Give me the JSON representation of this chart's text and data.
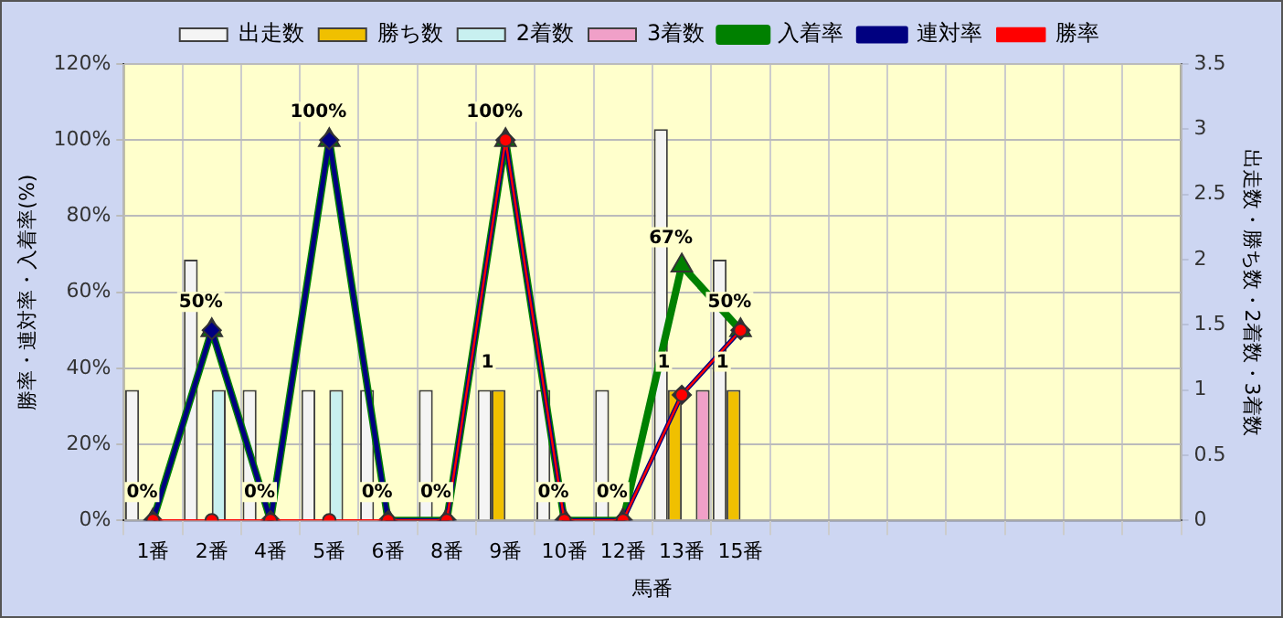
{
  "chart_data": {
    "type": "bar",
    "xlabel": "馬番",
    "ylabel": "勝率・連対率・入着率(%)",
    "y2label": "出走数・勝ち数・2着数・3着数",
    "categories": [
      "1番",
      "2番",
      "4番",
      "5番",
      "6番",
      "8番",
      "9番",
      "10番",
      "12番",
      "13番",
      "15番",
      null,
      null,
      null,
      null,
      null,
      null,
      null
    ],
    "series": [
      {
        "name": "出走数",
        "axis": "y2",
        "color": "#f4f4f4",
        "values": [
          1,
          2,
          1,
          1,
          1,
          1,
          1,
          1,
          1,
          3,
          2,
          null,
          null,
          null,
          null,
          null,
          null,
          null
        ]
      },
      {
        "name": "勝ち数",
        "axis": "y2",
        "color": "#f0c000",
        "values": [
          null,
          null,
          null,
          null,
          null,
          null,
          1,
          null,
          null,
          1,
          1,
          null,
          null,
          null,
          null,
          null,
          null,
          null
        ],
        "value_labels": [
          null,
          null,
          null,
          null,
          null,
          null,
          "1",
          null,
          null,
          "1",
          "1",
          null,
          null,
          null,
          null,
          null,
          null,
          null
        ]
      },
      {
        "name": "2着数",
        "axis": "y2",
        "color": "#c8f0f0",
        "values": [
          null,
          1,
          null,
          1,
          null,
          null,
          null,
          null,
          null,
          null,
          null,
          null,
          null,
          null,
          null,
          null,
          null,
          null
        ]
      },
      {
        "name": "3着数",
        "axis": "y2",
        "color": "#f0a0c8",
        "values": [
          null,
          null,
          null,
          null,
          null,
          null,
          null,
          null,
          null,
          1,
          null,
          null,
          null,
          null,
          null,
          null,
          null,
          null
        ]
      },
      {
        "name": "入着率",
        "type": "line",
        "marker": "triangle",
        "color": "#008000",
        "values": [
          0,
          50,
          0,
          100,
          0,
          0,
          100,
          0,
          0,
          67,
          50,
          null,
          null,
          null,
          null,
          null,
          null,
          null
        ],
        "value_labels": [
          "0%",
          "50%",
          "0%",
          "100%",
          "0%",
          "0%",
          "100%",
          "0%",
          "0%",
          "67%",
          "50%",
          null,
          null,
          null,
          null,
          null,
          null,
          null
        ]
      },
      {
        "name": "連対率",
        "type": "line",
        "marker": "diamond",
        "color": "#000080",
        "values": [
          0,
          50,
          0,
          100,
          0,
          0,
          100,
          0,
          0,
          33,
          50,
          null,
          null,
          null,
          null,
          null,
          null,
          null
        ]
      },
      {
        "name": "勝率",
        "type": "line",
        "marker": "circle",
        "color": "#ff0000",
        "values": [
          0,
          0,
          0,
          0,
          0,
          0,
          100,
          0,
          0,
          33,
          50,
          null,
          null,
          null,
          null,
          null,
          null,
          null
        ]
      }
    ],
    "ylim": [
      0,
      120
    ],
    "yticks": [
      {
        "value": 0,
        "label": "0%"
      },
      {
        "value": 20,
        "label": "20%"
      },
      {
        "value": 40,
        "label": "40%"
      },
      {
        "value": 60,
        "label": "60%"
      },
      {
        "value": 80,
        "label": "80%"
      },
      {
        "value": 100,
        "label": "100%"
      },
      {
        "value": 120,
        "label": "120%"
      }
    ],
    "y2lim": [
      0,
      3.5
    ],
    "y2ticks": [
      0,
      0.5,
      1,
      1.5,
      2,
      2.5,
      3,
      3.5
    ],
    "grid": true,
    "legend": "top"
  }
}
